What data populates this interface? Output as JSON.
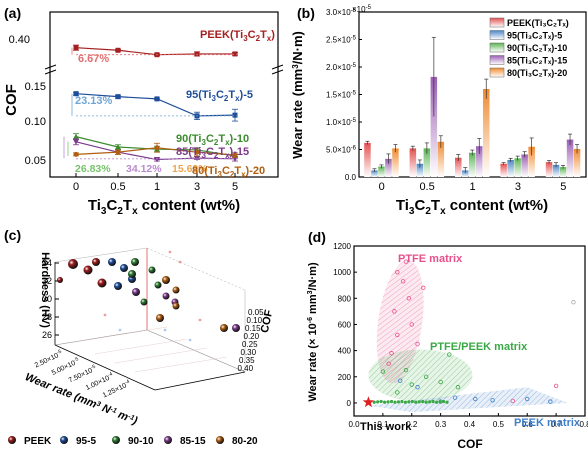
{
  "chart_data": [
    {
      "panel": "(a)",
      "type": "line",
      "xlabel": "Ti3C2Tx content (wt%)",
      "ylabel": "COF",
      "categories": [
        "0",
        "0.5",
        "1",
        "3",
        "5"
      ],
      "series": [
        {
          "name": "PEEK(Ti3C2Tx)",
          "color": "#a52020",
          "values": [
            0.382,
            0.372,
            0.355,
            0.358,
            0.358
          ],
          "errors": [
            0.01,
            0.003,
            0.003,
            0.008,
            0.005
          ]
        },
        {
          "name": "95(Ti3C2Tx)-5",
          "color": "#1f4e99",
          "values": [
            0.145,
            0.141,
            0.138,
            0.115,
            0.116
          ],
          "errors": [
            0.002,
            0.002,
            0.001,
            0.005,
            0.008
          ]
        },
        {
          "name": "90(Ti3C2Tx)-10",
          "color": "#3c8c2f",
          "values": [
            0.087,
            0.073,
            0.07,
            0.069,
            0.061
          ],
          "errors": [
            0.004,
            0.003,
            0.004,
            0.003,
            0.002
          ]
        },
        {
          "name": "85(Ti3C2Tx)-15",
          "color": "#7b3a8a",
          "values": [
            0.08,
            0.066,
            0.056,
            0.058,
            0.057
          ],
          "errors": [
            0.004,
            0.003,
            0.002,
            0.002,
            0.003
          ]
        },
        {
          "name": "80(Ti3C2Tx)-20",
          "color": "#b05f12",
          "values": [
            0.063,
            0.066,
            0.072,
            0.066,
            0.062
          ],
          "errors": [
            0.002,
            0.003,
            0.006,
            0.005,
            0.003
          ]
        }
      ],
      "yticks": [
        "0.05",
        "0.10",
        "0.15",
        "0.40"
      ],
      "annotations": [
        "6.67%",
        "23.13%",
        "26.83%",
        "34.12%",
        "15.63%"
      ],
      "annotation_colors": [
        "#e06f6f",
        "#6ea6d6",
        "#77c36c",
        "#b98bd0",
        "#efa64e"
      ],
      "series_labels": {
        "a": "PEEK(Ti",
        "b": "95(Ti",
        "c": "90(Ti",
        "d": "85(Ti",
        "e": "80(Ti",
        "sub3": "3",
        "subC": "C",
        "sub2": "2",
        "subT": "T",
        "subx": "x",
        "tail_a": ")",
        "tail_b": ")-5",
        "tail_c": ")-10",
        "tail_d": ")-15",
        "tail_e": ")-20"
      }
    },
    {
      "panel": "(b)",
      "type": "bar",
      "xlabel": "Ti3C2Tx content (wt%)",
      "ylabel": "Wear rate (mm3/N·m)",
      "categories": [
        "0",
        "0.5",
        "1",
        "3",
        "5"
      ],
      "scale_exponent": "-5",
      "series": [
        {
          "name": "PEEK(Ti3C2Tx)",
          "color": "#e35050",
          "values": [
            0.62,
            0.52,
            0.35,
            0.24,
            0.27
          ],
          "errors": [
            0.03,
            0.04,
            0.06,
            0.02,
            0.03
          ]
        },
        {
          "name": "95(Ti3C2Tx)-5",
          "color": "#4a86c6",
          "values": [
            0.12,
            0.24,
            0.12,
            0.31,
            0.22
          ],
          "errors": [
            0.03,
            0.07,
            0.05,
            0.03,
            0.04
          ]
        },
        {
          "name": "90(Ti3C2Tx)-10",
          "color": "#5cb454",
          "values": [
            0.19,
            0.52,
            0.44,
            0.34,
            0.18
          ],
          "errors": [
            0.03,
            0.1,
            0.05,
            0.04,
            0.03
          ]
        },
        {
          "name": "85(Ti3C2Tx)-15",
          "color": "#9b5fb4",
          "values": [
            0.33,
            1.82,
            0.56,
            0.41,
            0.68
          ],
          "errors": [
            0.09,
            0.72,
            0.14,
            0.05,
            0.1
          ]
        },
        {
          "name": "80(Ti3C2Tx)-20",
          "color": "#f08a30",
          "values": [
            0.52,
            0.64,
            1.6,
            0.55,
            0.51
          ],
          "errors": [
            0.07,
            0.11,
            0.18,
            0.16,
            0.08
          ]
        }
      ],
      "yticks": [
        "0.0",
        "5.0×10",
        "1.0×10",
        "1.5×10",
        "2.0×10",
        "2.5×10",
        "3.0×10"
      ],
      "ytick_exps": [
        "",
        "-6",
        "-5",
        "-5",
        "-5",
        "-5",
        "-5"
      ]
    },
    {
      "panel": "(c)",
      "type": "scatter",
      "title": "",
      "zlabel": "Hardness (HV)",
      "xlabel": "Wear rate (mm3 N-1 m-1)",
      "ylabel": "COF",
      "zticks": [
        "26",
        "28",
        "30",
        "32",
        "34"
      ],
      "xticks": [
        "2.50×10",
        "5.00×10",
        "7.50×10",
        "1.00×10",
        "1.25×10"
      ],
      "xtick_exps": [
        "-5",
        "-5",
        "-5",
        "-4",
        "-4"
      ],
      "yticks": [
        "0.05",
        "0.10",
        "0.15",
        "0.20",
        "0.25",
        "0.30",
        "0.35",
        "0.40"
      ],
      "legend": [
        {
          "name": "PEEK",
          "color": "#9b1c1c"
        },
        {
          "name": "95-5",
          "color": "#1f4e99"
        },
        {
          "name": "90-10",
          "color": "#2e7d32"
        },
        {
          "name": "85-15",
          "color": "#7b3a8a"
        },
        {
          "name": "80-20",
          "color": "#b05f12"
        }
      ]
    },
    {
      "panel": "(d)",
      "type": "scatter",
      "xlabel": "COF",
      "ylabel": "Wear rate (× 10-6 mm3/N·m)",
      "xlim": [
        0,
        0.8
      ],
      "ylim": [
        -100,
        1200
      ],
      "xticks": [
        "0.0",
        "0.1",
        "0.2",
        "0.3",
        "0.4",
        "0.5",
        "0.6",
        "0.7",
        "0.8"
      ],
      "yticks": [
        "0",
        "200",
        "400",
        "600",
        "800",
        "1000",
        "1200"
      ],
      "regions": [
        {
          "name": "PTFE matrix",
          "color": "#e8508a"
        },
        {
          "name": "PTFE/PEEK matrix",
          "color": "#3aa845"
        },
        {
          "name": "PEEK matrix",
          "color": "#3f7fc8"
        }
      ],
      "annotation": "This work",
      "this_work": {
        "x": 0.05,
        "y": 5
      }
    }
  ]
}
